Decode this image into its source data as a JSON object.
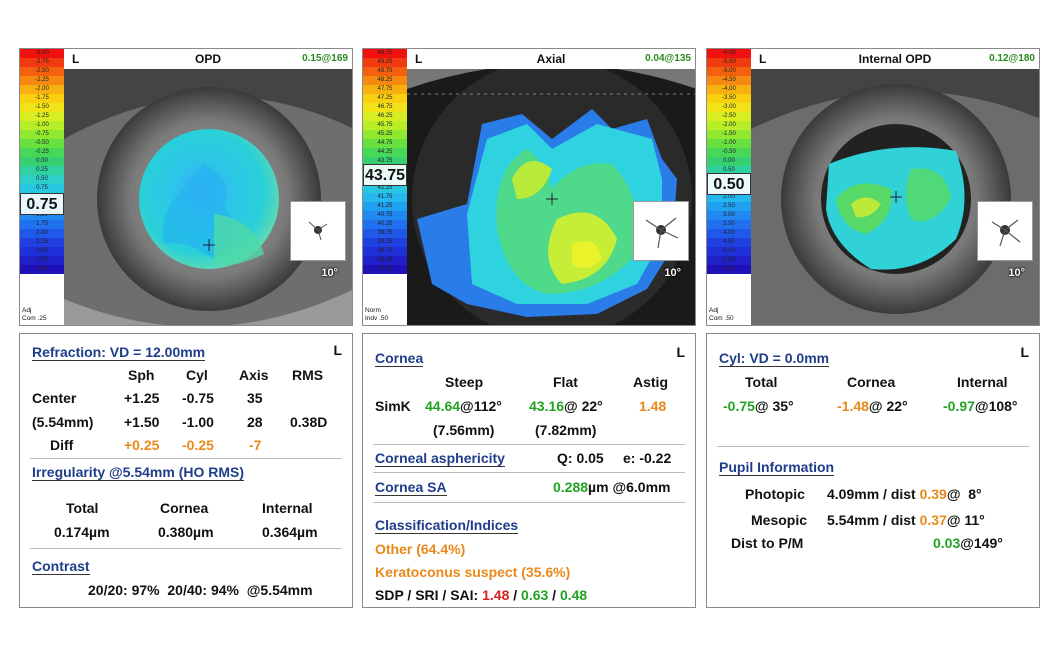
{
  "maps": [
    {
      "side": "L",
      "title": "OPD",
      "corner_value": "0.15@169",
      "highlight": "0.75",
      "scale": [
        "-3.00",
        "-2.75",
        "-2.50",
        "-2.25",
        "-2.00",
        "-1.75",
        "-1.50",
        "-1.25",
        "-1.00",
        "-0.75",
        "-0.50",
        "-0.25",
        "0.00",
        "0.25",
        "0.50",
        "0.75",
        "1.00",
        "1.25",
        "1.50",
        "1.75",
        "2.00",
        "2.25",
        "2.50",
        "2.75",
        "3.00"
      ],
      "footer": [
        "Adj",
        "Com .25"
      ],
      "degree": "10°"
    },
    {
      "side": "L",
      "title": "Axial",
      "corner_value": "0.04@135",
      "highlight": "43.75",
      "scale": [
        "49.75",
        "49.25",
        "48.75",
        "48.25",
        "47.75",
        "47.25",
        "46.75",
        "46.25",
        "45.75",
        "45.25",
        "44.75",
        "44.25",
        "43.75",
        "43.25",
        "42.75",
        "42.25",
        "41.75",
        "41.25",
        "40.75",
        "40.25",
        "39.75",
        "39.25",
        "38.75",
        "38.25",
        "37.75"
      ],
      "footer": [
        "Norm",
        "Indv .50"
      ],
      "degree": "10°"
    },
    {
      "side": "L",
      "title": "Internal OPD",
      "corner_value": "0.12@180",
      "highlight": "0.50",
      "scale": [
        "-6.00",
        "-5.50",
        "-5.00",
        "-4.50",
        "-4.00",
        "-3.50",
        "-3.00",
        "-2.50",
        "-2.00",
        "-1.50",
        "-1.00",
        "-0.50",
        "0.00",
        "0.50",
        "1.00",
        "1.50",
        "2.00",
        "2.50",
        "3.00",
        "3.50",
        "4.00",
        "4.50",
        "5.00",
        "5.50",
        "6.00"
      ],
      "footer": [
        "Adj",
        "Com .50"
      ],
      "degree": "10°"
    }
  ],
  "refraction": {
    "side": "L",
    "title": "Refraction: VD = 12.00mm",
    "headers": [
      "Sph",
      "Cyl",
      "Axis",
      "RMS"
    ],
    "center_label": "Center",
    "size_label": "(5.54mm)",
    "diff_label": "Diff",
    "row1": [
      "+1.25",
      "-0.75",
      "35"
    ],
    "row2": [
      "+1.50",
      "-1.00",
      "28",
      "0.38D"
    ],
    "diff": [
      "+0.25",
      "-0.25",
      "-7"
    ],
    "irregularity_title": "Irregularity @5.54mm (HO RMS)",
    "irr_headers": [
      "Total",
      "Cornea",
      "Internal"
    ],
    "irr_values": [
      "0.174µm",
      "0.380µm",
      "0.364µm"
    ],
    "contrast_title": "Contrast",
    "contrast_line": "20/20: 97%  20/40: 94%  @5.54mm"
  },
  "cornea": {
    "side": "L",
    "title": "Cornea",
    "headers": [
      "Steep",
      "Flat",
      "Astig"
    ],
    "simk_label": "SimK",
    "steep_k": "44.64",
    "steep_axis": "@112°",
    "flat_k": "43.16",
    "flat_axis": "@ 22°",
    "astig": "1.48",
    "steep_mm": "(7.56mm)",
    "flat_mm": "(7.82mm)",
    "asph_title": "Corneal asphericity",
    "q": "Q: 0.05",
    "e": "e: -0.22",
    "sa_title": "Cornea SA",
    "sa_value": "0.288",
    "sa_unit": "µm @6.0mm",
    "class_title": "Classification/Indices",
    "class1": "Other (64.4%)",
    "class2": "Keratoconus suspect (35.6%)",
    "idx_label": "SDP / SRI / SAI:",
    "sdp": "1.48",
    "slash": " / ",
    "sri": "0.63",
    "sai": "0.48"
  },
  "cyl": {
    "side": "L",
    "title": "Cyl: VD = 0.0mm",
    "headers": [
      "Total",
      "Cornea",
      "Internal"
    ],
    "total_v": "-0.75",
    "total_a": "@ 35°",
    "cornea_v": "-1.48",
    "cornea_a": "@ 22°",
    "internal_v": "-0.97",
    "internal_a": "@108°",
    "pupil_title": "Pupil Information",
    "photopic_label": "Photopic",
    "photopic_size": "4.09mm / dist",
    "photopic_dist": "0.39",
    "photopic_angle": "@  8°",
    "mesopic_label": "Mesopic",
    "mesopic_size": "5.54mm / dist",
    "mesopic_dist": "0.37",
    "mesopic_angle": "@ 11°",
    "pm_label": "Dist to P/M",
    "pm_value": "0.03",
    "pm_angle": "@149°"
  },
  "colors": {
    "green": "#21a321",
    "orange": "#e9891a",
    "red": "#d62020",
    "title_blue": "#1f3d8a"
  }
}
